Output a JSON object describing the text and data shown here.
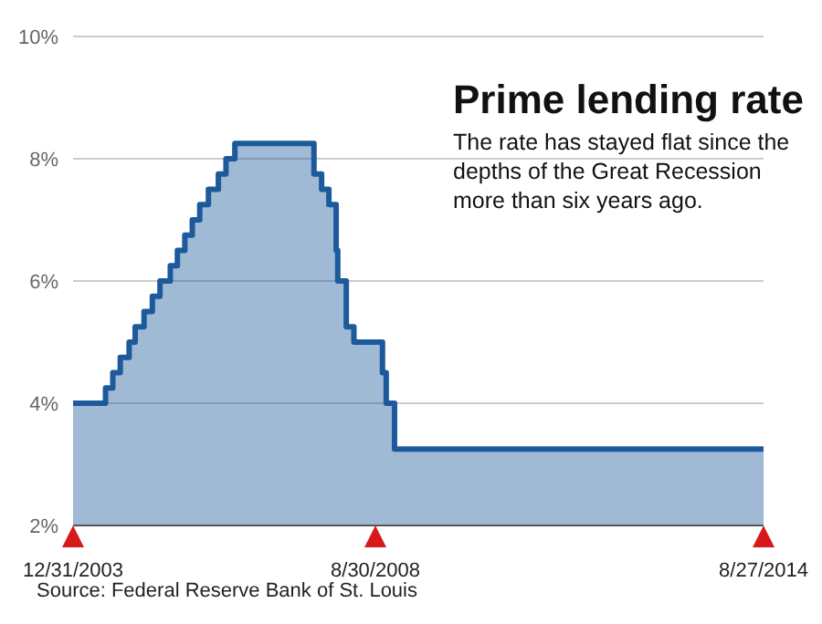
{
  "chart_data": {
    "type": "area",
    "title": "Prime lending rate",
    "subtitle": "The rate has stayed flat since the depths of the Great Recession more than six years ago.",
    "annotations": [
      "Source: Federal Reserve Bank of St. Louis"
    ],
    "x": [
      "2003-12-31",
      "2004-07-01",
      "2004-07-01",
      "2004-08-11",
      "2004-08-11",
      "2004-09-22",
      "2004-09-22",
      "2004-11-11",
      "2004-11-11",
      "2004-12-15",
      "2004-12-15",
      "2005-02-03",
      "2005-02-03",
      "2005-03-22",
      "2005-03-22",
      "2005-05-04",
      "2005-05-04",
      "2005-07-01",
      "2005-07-01",
      "2005-08-10",
      "2005-08-10",
      "2005-09-21",
      "2005-09-21",
      "2005-11-02",
      "2005-11-02",
      "2005-12-14",
      "2005-12-14",
      "2006-02-01",
      "2006-02-01",
      "2006-03-29",
      "2006-03-29",
      "2006-05-11",
      "2006-05-11",
      "2006-06-30",
      "2006-06-30",
      "2007-09-19",
      "2007-09-19",
      "2007-11-01",
      "2007-11-01",
      "2007-12-12",
      "2007-12-12",
      "2008-01-22",
      "2008-01-22",
      "2008-01-31",
      "2008-01-31",
      "2008-03-19",
      "2008-03-19",
      "2008-05-01",
      "2008-05-01",
      "2008-10-09",
      "2008-10-09",
      "2008-10-30",
      "2008-10-30",
      "2008-12-16",
      "2008-12-16",
      "2014-08-27"
    ],
    "series": [
      {
        "color": "#1d5a9c",
        "values": [
          4,
          4,
          4.25,
          4.25,
          4.5,
          4.5,
          4.75,
          4.75,
          5,
          5,
          5.25,
          5.25,
          5.5,
          5.5,
          5.75,
          5.75,
          6,
          6,
          6.25,
          6.25,
          6.5,
          6.5,
          6.75,
          6.75,
          7,
          7,
          7.25,
          7.25,
          7.5,
          7.5,
          7.75,
          7.75,
          8,
          8,
          8.25,
          8.25,
          7.75,
          7.75,
          7.5,
          7.5,
          7.25,
          7.25,
          6.5,
          6.5,
          6,
          6,
          5.25,
          5.25,
          5,
          5,
          4.5,
          4.5,
          4,
          4,
          3.25,
          3.25
        ]
      }
    ],
    "xlim": [
      "2003-12-31",
      "2014-08-27"
    ],
    "xticks": [
      {
        "value": "2003-12-31",
        "label": "12/31/2003"
      },
      {
        "value": "2008-08-30",
        "label": "8/30/2008"
      },
      {
        "value": "2014-08-27",
        "label": "8/27/2014"
      }
    ],
    "ylim": [
      2,
      10
    ],
    "yticks": [
      {
        "value": 2,
        "label": "2%"
      },
      {
        "value": 4,
        "label": "4%"
      },
      {
        "value": 6,
        "label": "6%"
      },
      {
        "value": 8,
        "label": "8%"
      },
      {
        "value": 10,
        "label": "10%"
      }
    ],
    "grid": "y"
  }
}
